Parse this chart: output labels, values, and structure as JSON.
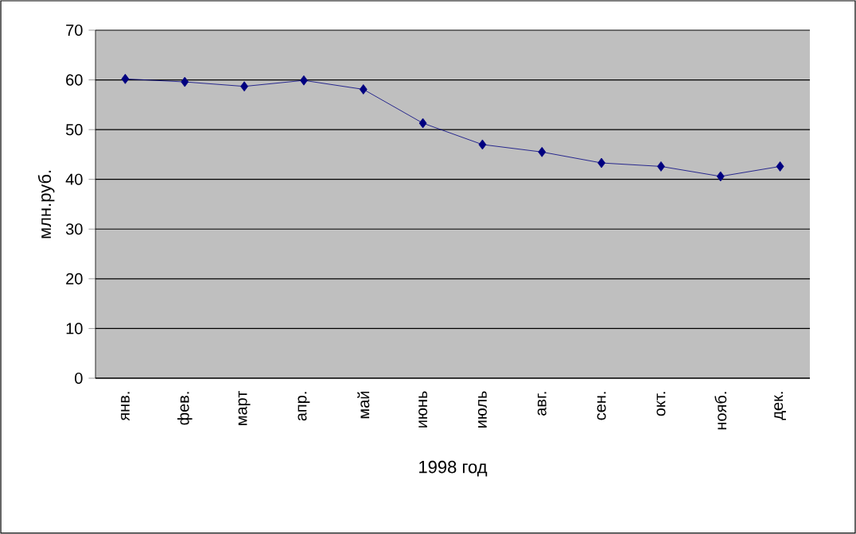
{
  "chart_data": {
    "type": "line",
    "xlabel": "1998 год",
    "ylabel": "млн.руб.",
    "categories": [
      "янв.",
      "фев.",
      "март",
      "апр.",
      "май",
      "июнь",
      "июль",
      "авг.",
      "сен.",
      "окт.",
      "нояб.",
      "дек."
    ],
    "series": [
      {
        "color": "#000080",
        "values": [
          60.2,
          59.6,
          58.7,
          59.9,
          58.1,
          51.3,
          47.0,
          45.5,
          43.3,
          42.6,
          40.6,
          42.6
        ]
      }
    ],
    "ylim": [
      0,
      70
    ],
    "yticks": [
      0,
      10,
      20,
      30,
      40,
      50,
      60,
      70
    ],
    "grid": "y",
    "marker": "diamond",
    "line_style": "solid"
  }
}
